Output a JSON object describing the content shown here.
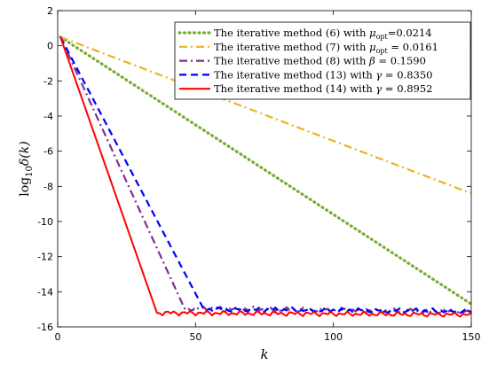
{
  "chart_data": {
    "type": "line",
    "xlabel": "k",
    "ylabel": "log10 δ(k)",
    "ylabel_parts": {
      "prefix": "log",
      "sub": "10",
      "main": "δ(k)"
    },
    "xlim": [
      0,
      150
    ],
    "ylim": [
      -16,
      2
    ],
    "xticks": [
      0,
      50,
      100,
      150
    ],
    "yticks": [
      2,
      0,
      -2,
      -4,
      -6,
      -8,
      -10,
      -12,
      -14,
      -16
    ],
    "xtick_labels": [
      "0",
      "50",
      "100",
      "150"
    ],
    "ytick_labels": [
      "2",
      "0",
      "-2",
      "-4",
      "-6",
      "-8",
      "-10",
      "-12",
      "-14",
      "-16"
    ],
    "grid": false,
    "legend_position": "top-right",
    "series": [
      {
        "name": "The iterative method (6) with μopt=0.0214",
        "legend": {
          "pre": "The iterative method (6) with ",
          "sym": "μ",
          "sub": "opt",
          "post": "=0.0214"
        },
        "color": "#77ac30",
        "style": "dotted",
        "x": [
          1,
          150
        ],
        "y": [
          0.5,
          -14.7
        ]
      },
      {
        "name": "The iterative method (7) with μopt = 0.0161",
        "legend": {
          "pre": "The iterative method (7) with ",
          "sym": "μ",
          "sub": "opt",
          "post": " = 0.0161"
        },
        "color": "#edb120",
        "style": "dashdot",
        "x": [
          1,
          150
        ],
        "y": [
          0.5,
          -8.4
        ]
      },
      {
        "name": "The iterative method (8) with β = 0.1590",
        "legend": {
          "pre": "The iterative method (8) with ",
          "sym": "β",
          "sub": "",
          "post": " = 0.1590"
        },
        "color": "#7e2f8e",
        "style": "dashdot",
        "x": [
          1,
          46,
          150
        ],
        "y": [
          0.5,
          -14.95,
          -15.15
        ],
        "noise_after": 46
      },
      {
        "name": "The iterative method (13) with γ = 0.8350",
        "legend": {
          "pre": "The iterative method (13) with ",
          "sym": "γ",
          "sub": "",
          "post": " = 0.8350"
        },
        "color": "#0000ff",
        "style": "dashed",
        "x": [
          1,
          53,
          150
        ],
        "y": [
          0.5,
          -15.0,
          -15.1
        ],
        "noise_after": 53
      },
      {
        "name": "The iterative method (14) with γ = 0.8952",
        "legend": {
          "pre": "The iterative method (14) with ",
          "sym": "γ",
          "sub": "",
          "post": " = 0.8952"
        },
        "color": "#ff0000",
        "style": "solid",
        "x": [
          1,
          36,
          150
        ],
        "y": [
          0.5,
          -15.2,
          -15.3
        ],
        "noise_after": 36
      }
    ]
  }
}
